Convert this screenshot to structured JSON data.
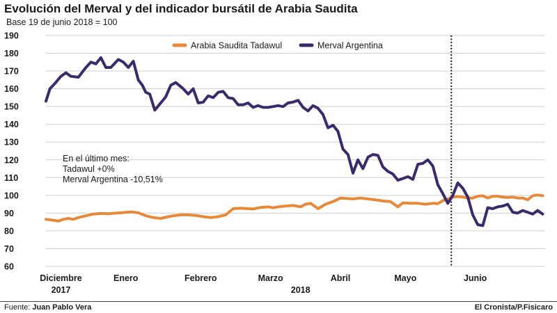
{
  "title": "Evolución del Merval y del indicador bursátil de Arabia Saudita",
  "subtitle": "Base 19 de junio 2018 = 100",
  "source_label": "Fuente:",
  "source_name": "Juan Pablo Vera",
  "credit": "El Cronista/P.Fisicaro",
  "chart_data": {
    "type": "line",
    "title": "Evolución del Merval y del indicador bursátil de Arabia Saudita",
    "subtitle": "Base 19 de junio 2018 = 100",
    "ylim": [
      60,
      190
    ],
    "yticks": [
      60,
      70,
      80,
      90,
      100,
      110,
      120,
      130,
      140,
      150,
      160,
      170,
      180,
      190
    ],
    "xlim": [
      0,
      100
    ],
    "month_labels": [
      {
        "label": "Diciembre",
        "x": 3
      },
      {
        "label": "Enero",
        "x": 16
      },
      {
        "label": "Febrero",
        "x": 31
      },
      {
        "label": "Marzo",
        "x": 45
      },
      {
        "label": "Abril",
        "x": 59
      },
      {
        "label": "Mayo",
        "x": 72
      },
      {
        "label": "Junio",
        "x": 86
      }
    ],
    "year_labels": [
      {
        "label": "2017",
        "x": 3
      },
      {
        "label": "2018",
        "x": 51
      }
    ],
    "base_marker_x": 81.2,
    "legend": [
      "Arabia Saudita Tadawul",
      "Merval Argentina"
    ],
    "annotation": [
      "En el último mes:",
      "Tadawul +0%",
      "Merval Argentina -10,51%"
    ],
    "colors": {
      "tadawul": "#e8893a",
      "merval": "#3b2a6b"
    },
    "series": [
      {
        "name": "Arabia Saudita Tadawul",
        "color": "#e8893a",
        "x": [
          0,
          1.5,
          2.5,
          3.5,
          4.5,
          5.5,
          6.5,
          8,
          9.5,
          11,
          12.5,
          14,
          15.5,
          17,
          18.5,
          20,
          21.5,
          23,
          24.5,
          25.5,
          27,
          28.5,
          30,
          31.5,
          33,
          34.5,
          36,
          37.5,
          39,
          40.5,
          41.5,
          43,
          44.5,
          45.5,
          46.5,
          48,
          49.5,
          51,
          52,
          53,
          54.5,
          56,
          57.5,
          59,
          60,
          61.5,
          63,
          64.5,
          66,
          67.5,
          69,
          70.5,
          71.5,
          73,
          74.5,
          76,
          77.5,
          78.5,
          79.5,
          80.5,
          81.5,
          82.5,
          83.5,
          84.5,
          85.5,
          86.5,
          87.5,
          88.5,
          89.5,
          90.5,
          91.5,
          92.5,
          93.5,
          94.5,
          95.5,
          96.5,
          97.5,
          98.5,
          99.5
        ],
        "values": [
          86.5,
          86,
          85.5,
          86.5,
          87,
          86.5,
          87.5,
          88.5,
          89.5,
          89.8,
          89.7,
          90,
          90.3,
          90.7,
          90.2,
          88.5,
          87.5,
          87,
          88,
          88.5,
          89,
          89,
          88.7,
          88,
          87.5,
          88,
          89,
          92.5,
          92.8,
          92.5,
          92.3,
          93.2,
          93.5,
          93,
          93.5,
          94,
          94.3,
          93.5,
          95,
          95.5,
          92.5,
          95,
          96.5,
          98.5,
          98.3,
          98,
          98.5,
          98,
          97.5,
          96.8,
          96.5,
          93.5,
          95.8,
          95.5,
          95.5,
          95,
          95.5,
          95.3,
          97,
          98,
          99,
          99.3,
          99,
          98.5,
          98.5,
          99.5,
          99.8,
          98.5,
          99.5,
          99.5,
          99,
          98.8,
          99,
          98.5,
          98.5,
          97.5,
          99.8,
          100.2,
          99.8
        ]
      },
      {
        "name": "Merval Argentina",
        "color": "#3b2a6b",
        "x": [
          0,
          0.8,
          1.8,
          3,
          4,
          5,
          6.5,
          8,
          9,
          10,
          11,
          12,
          13,
          14.5,
          15.5,
          16.5,
          17.5,
          18.5,
          19.3,
          20,
          20.8,
          21.8,
          23,
          24,
          25,
          26,
          27.5,
          28.5,
          29.5,
          30.5,
          31.5,
          32.5,
          33.5,
          34.5,
          35.5,
          36.5,
          37.5,
          38.5,
          39.5,
          40.5,
          41.5,
          42.5,
          43.5,
          44.5,
          45.5,
          46.5,
          47.5,
          48.5,
          49.5,
          50.5,
          51.5,
          52.5,
          53.5,
          54.5,
          55.5,
          56.5,
          57.5,
          58.5,
          59.5,
          60.5,
          61.5,
          62.5,
          63.5,
          64.5,
          65.5,
          66.5,
          67.5,
          68.5,
          69.5,
          70.5,
          71.5,
          72.5,
          73.5,
          74.5,
          75.5,
          76.5,
          77.5,
          78.5,
          79.5,
          80.5,
          81.5,
          82.5,
          83.5,
          84.5,
          85.5,
          86.5,
          87.5,
          88.5,
          89.5,
          90.5,
          91.5,
          92.5,
          93.5,
          94.5,
          95.5,
          96.5,
          97.5,
          98.5,
          99.5
        ],
        "values": [
          153,
          160,
          163,
          167,
          169,
          167,
          166.5,
          172,
          175,
          174,
          177.5,
          172,
          172,
          176.5,
          175,
          172,
          175.5,
          165,
          162,
          158,
          157,
          148,
          152,
          155.5,
          162,
          163.5,
          160,
          157,
          160,
          152,
          152.5,
          156,
          155,
          158,
          158.5,
          155,
          154.5,
          151,
          151,
          152,
          149.5,
          150.5,
          149.5,
          149.5,
          150,
          150.5,
          150,
          152,
          152.5,
          153.5,
          149.5,
          147.5,
          150.5,
          149,
          145.5,
          138,
          139.5,
          136,
          126,
          123,
          112.5,
          120,
          115,
          121.5,
          123,
          122.5,
          116,
          113.5,
          112,
          108.5,
          109.5,
          110.5,
          109,
          117.5,
          118,
          120,
          116.5,
          106,
          101,
          95.5,
          100,
          107,
          104,
          99,
          89,
          83.5,
          83,
          93,
          92.5,
          93.5,
          94,
          95,
          90.5,
          90,
          91.5,
          90.5,
          89.5,
          91.5,
          89.5
        ]
      }
    ]
  }
}
